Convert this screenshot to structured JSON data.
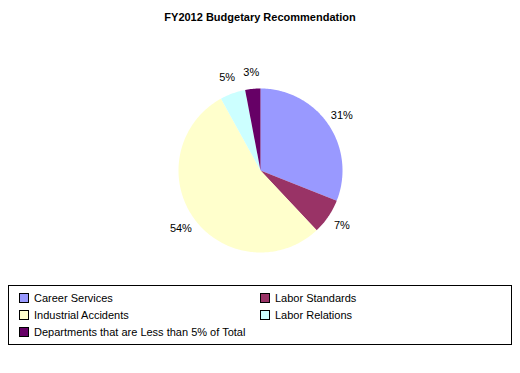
{
  "chart_data": {
    "type": "pie",
    "title": "FY2012 Budgetary Recommendation",
    "categories": [
      "Career Services",
      "Labor Standards",
      "Industrial Accidents",
      "Labor Relations",
      "Departments that are Less than 5% of Total"
    ],
    "values": [
      31,
      7,
      54,
      5,
      3
    ],
    "value_labels": [
      "31%",
      "7%",
      "54%",
      "5%",
      "3%"
    ],
    "colors": [
      "#9999ff",
      "#993366",
      "#ffffcc",
      "#ccffff",
      "#660066"
    ],
    "data_labels": true,
    "legend": "bottom"
  }
}
